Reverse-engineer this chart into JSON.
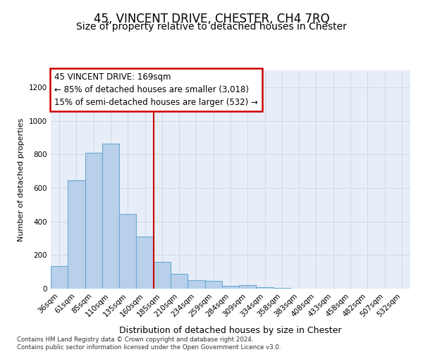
{
  "title": "45, VINCENT DRIVE, CHESTER, CH4 7RQ",
  "subtitle": "Size of property relative to detached houses in Chester",
  "xlabel": "Distribution of detached houses by size in Chester",
  "ylabel": "Number of detached properties",
  "categories": [
    "36sqm",
    "61sqm",
    "85sqm",
    "110sqm",
    "135sqm",
    "160sqm",
    "185sqm",
    "210sqm",
    "234sqm",
    "259sqm",
    "284sqm",
    "309sqm",
    "334sqm",
    "358sqm",
    "383sqm",
    "408sqm",
    "433sqm",
    "458sqm",
    "482sqm",
    "507sqm",
    "532sqm"
  ],
  "values": [
    135,
    645,
    808,
    865,
    445,
    310,
    158,
    90,
    52,
    45,
    18,
    22,
    10,
    5,
    2,
    2,
    0,
    1,
    0,
    0,
    2
  ],
  "bar_color": "#b8d0ea",
  "bar_edge_color": "#6aaad4",
  "vline_x_index": 6,
  "vline_color": "#cc0000",
  "annotation_line1": "45 VINCENT DRIVE: 169sqm",
  "annotation_line2": "← 85% of detached houses are smaller (3,018)",
  "annotation_line3": "15% of semi-detached houses are larger (532) →",
  "annotation_box_color": "#ffffff",
  "annotation_box_edge": "#cc0000",
  "ylim": [
    0,
    1300
  ],
  "yticks": [
    0,
    200,
    400,
    600,
    800,
    1000,
    1200
  ],
  "grid_color": "#d0d8e8",
  "bg_color": "#e8eef8",
  "footnote": "Contains HM Land Registry data © Crown copyright and database right 2024.\nContains public sector information licensed under the Open Government Licence v3.0.",
  "title_fontsize": 12,
  "subtitle_fontsize": 10,
  "xlabel_fontsize": 9,
  "ylabel_fontsize": 8,
  "tick_fontsize": 7.5,
  "annotation_fontsize": 8.5,
  "footnote_fontsize": 6.2
}
